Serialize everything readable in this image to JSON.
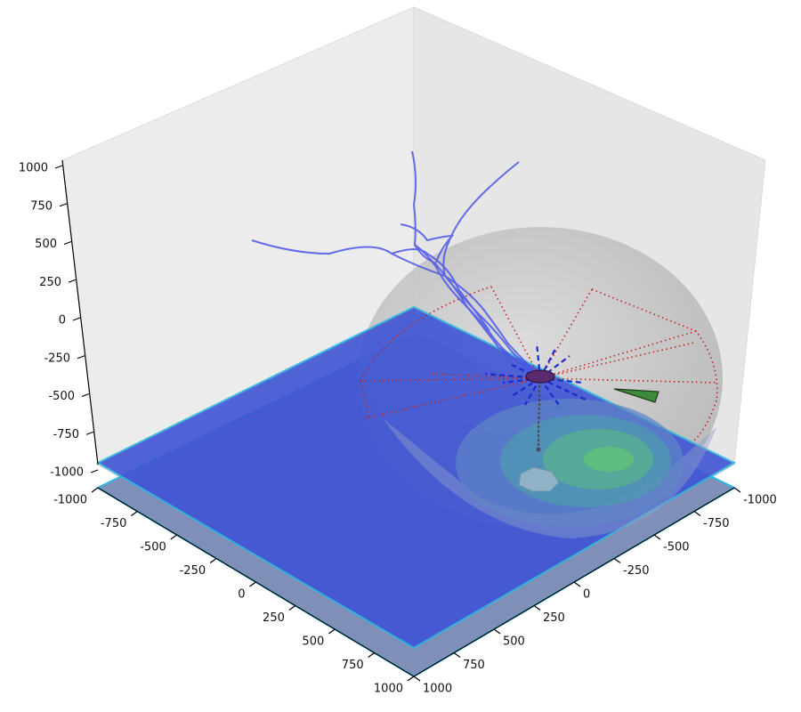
{
  "chart_data": {
    "type": "scatter",
    "title": "",
    "xlabel": "",
    "ylabel": "",
    "zlabel": "",
    "projection": "3d",
    "xlim": [
      -1000,
      1000
    ],
    "ylim": [
      -1000,
      1000
    ],
    "zlim": [
      -1000,
      1000
    ],
    "x_ticks": [
      "-1000",
      "-750",
      "-500",
      "-250",
      "0",
      "250",
      "500",
      "750",
      "1000"
    ],
    "y_ticks": [
      "-1000",
      "-750",
      "-500",
      "-250",
      "0",
      "250",
      "500",
      "750",
      "1000"
    ],
    "z_ticks": [
      "-1000",
      "-750",
      "-500",
      "-250",
      "0",
      "250",
      "500",
      "750",
      "1000"
    ],
    "grid": false,
    "legend": "none",
    "colors": {
      "pane": "#ececec",
      "plane_fill": "#3c52d6",
      "plane_lower": "#7f8fb8",
      "plane_edge": "#29b6e0",
      "sphere": "#9a9a9a",
      "neuron": "#4a55e8",
      "dendrite_dashes": "#1a2ad0",
      "sector_dots": "#c0251b",
      "cone": "#3f8a3a",
      "rings": [
        "#5f86c4",
        "#4fa0a6",
        "#56b488",
        "#5cc07c"
      ]
    }
  }
}
